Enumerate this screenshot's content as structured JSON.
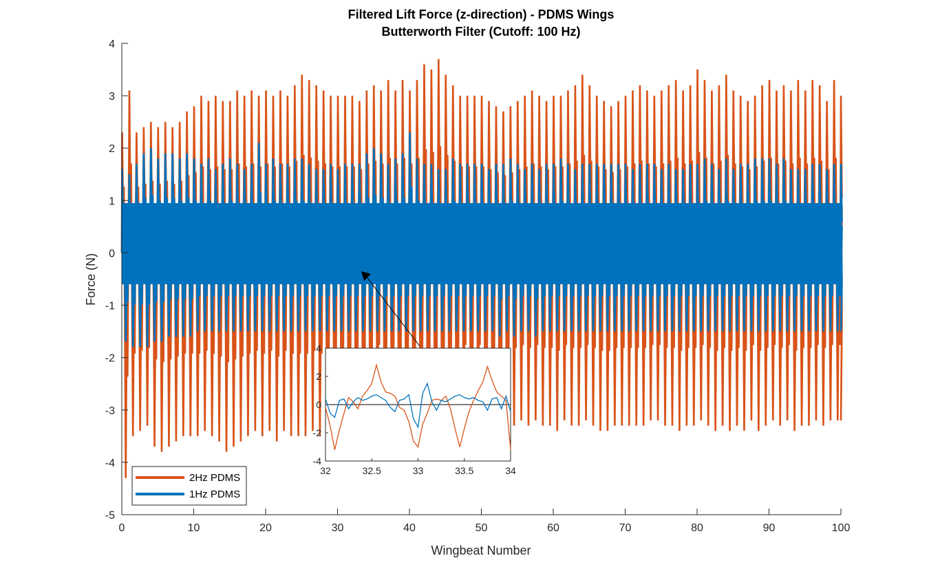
{
  "chart_data": {
    "type": "line",
    "title": "Filtered Lift Force (z-direction) - PDMS Wings",
    "subtitle": "Butterworth Filter (Cutoff: 100 Hz)",
    "xlabel": "Wingbeat Number",
    "ylabel": "Force (N)",
    "xlim": [
      0,
      100
    ],
    "ylim": [
      -5,
      4
    ],
    "xticks": [
      0,
      10,
      20,
      30,
      40,
      50,
      60,
      70,
      80,
      90,
      100
    ],
    "yticks": [
      -5,
      -4,
      -3,
      -2,
      -1,
      0,
      1,
      2,
      3,
      4
    ],
    "grid": false,
    "legend_location": "bottom-left",
    "colors": {
      "2Hz PDMS": "#D95319",
      "1Hz PDMS": "#0072BD"
    },
    "series": [
      {
        "name": "2Hz PDMS",
        "color": "#D95319",
        "description_points": "per-wingbeat peak and trough envelope (approx.)",
        "peak_x": [
          0,
          1,
          2,
          3,
          4,
          5,
          6,
          7,
          8,
          9,
          10,
          11,
          12,
          13,
          14,
          15,
          16,
          17,
          18,
          19,
          20,
          21,
          22,
          23,
          24,
          25,
          26,
          27,
          28,
          29,
          30,
          31,
          32,
          33,
          34,
          35,
          36,
          37,
          38,
          39,
          40,
          41,
          42,
          43,
          44,
          45,
          46,
          47,
          48,
          49,
          50,
          51,
          52,
          53,
          54,
          55,
          56,
          57,
          58,
          59,
          60,
          61,
          62,
          63,
          64,
          65,
          66,
          67,
          68,
          69,
          70,
          71,
          72,
          73,
          74,
          75,
          76,
          77,
          78,
          79,
          80,
          81,
          82,
          83,
          84,
          85,
          86,
          87,
          88,
          89,
          90,
          91,
          92,
          93,
          94,
          95,
          96,
          97,
          98,
          99,
          100
        ],
        "peak_y": [
          2.3,
          3.1,
          2.3,
          2.4,
          2.5,
          2.4,
          2.5,
          2.4,
          2.5,
          2.7,
          2.8,
          3.0,
          2.9,
          3.0,
          2.9,
          2.9,
          3.1,
          3.0,
          3.1,
          3.0,
          3.1,
          3.0,
          3.1,
          3.0,
          3.2,
          3.4,
          3.3,
          3.2,
          3.1,
          3.0,
          3.0,
          3.0,
          3.0,
          2.9,
          3.1,
          3.2,
          3.1,
          3.3,
          3.1,
          3.3,
          3.1,
          3.3,
          3.6,
          3.5,
          3.7,
          3.4,
          3.2,
          3.0,
          3.0,
          3.0,
          3.0,
          2.9,
          2.8,
          2.7,
          2.8,
          2.9,
          3.0,
          3.1,
          3.0,
          2.9,
          3.0,
          3.0,
          3.1,
          3.2,
          3.4,
          3.2,
          3.0,
          2.9,
          2.8,
          2.9,
          3.0,
          3.1,
          3.2,
          3.1,
          3.0,
          3.1,
          3.2,
          3.3,
          3.1,
          3.2,
          3.5,
          3.3,
          3.1,
          3.2,
          3.4,
          3.1,
          3.0,
          2.9,
          3.0,
          3.2,
          3.3,
          3.1,
          3.2,
          3.1,
          3.3,
          3.1,
          3.3,
          3.2,
          2.9,
          3.3,
          3.0
        ],
        "trough_y": [
          -4.3,
          -3.5,
          -3.4,
          -3.3,
          -3.7,
          -3.8,
          -3.7,
          -3.6,
          -3.5,
          -3.5,
          -3.5,
          -3.4,
          -3.5,
          -3.6,
          -3.8,
          -3.7,
          -3.6,
          -3.5,
          -3.4,
          -3.5,
          -3.4,
          -3.6,
          -3.4,
          -3.5,
          -3.5,
          -3.5,
          -3.4,
          -3.5,
          -3.4,
          -3.4,
          -3.3,
          -3.4,
          -3.3,
          -3.3,
          -3.3,
          -3.2,
          -3.3,
          -3.4,
          -3.5,
          -3.5,
          -3.3,
          -3.4,
          -3.4,
          -3.3,
          -3.4,
          -3.3,
          -3.4,
          -3.2,
          -3.3,
          -3.2,
          -3.3,
          -3.3,
          -3.5,
          -3.3,
          -3.3,
          -3.2,
          -3.3,
          -3.2,
          -3.3,
          -3.3,
          -3.4,
          -3.2,
          -3.3,
          -3.3,
          -3.2,
          -3.3,
          -3.4,
          -3.4,
          -3.3,
          -3.3,
          -3.3,
          -3.3,
          -3.3,
          -3.2,
          -3.2,
          -3.3,
          -3.3,
          -3.4,
          -3.3,
          -3.3,
          -3.2,
          -3.3,
          -3.4,
          -3.3,
          -3.4,
          -3.3,
          -3.4,
          -3.2,
          -3.4,
          -3.3,
          -3.2,
          -3.3,
          -3.2,
          -3.4,
          -3.3,
          -3.3,
          -3.2,
          -3.3,
          -3.2,
          -3.2,
          -3.2
        ]
      },
      {
        "name": "1Hz PDMS",
        "color": "#0072BD",
        "description_points": "per-wingbeat peak and trough envelope (approx.)",
        "peak_x": [
          0,
          1,
          2,
          3,
          4,
          5,
          6,
          7,
          8,
          9,
          10,
          11,
          12,
          13,
          14,
          15,
          16,
          17,
          18,
          19,
          20,
          21,
          22,
          23,
          24,
          25,
          26,
          27,
          28,
          29,
          30,
          31,
          32,
          33,
          34,
          35,
          36,
          37,
          38,
          39,
          40,
          41,
          42,
          43,
          44,
          45,
          46,
          47,
          48,
          49,
          50,
          51,
          52,
          53,
          54,
          55,
          56,
          57,
          58,
          59,
          60,
          61,
          62,
          63,
          64,
          65,
          66,
          67,
          68,
          69,
          70,
          71,
          72,
          73,
          74,
          75,
          76,
          77,
          78,
          79,
          80,
          81,
          82,
          83,
          84,
          85,
          86,
          87,
          88,
          89,
          90,
          91,
          92,
          93,
          94,
          95,
          96,
          97,
          98,
          99,
          100
        ],
        "peak_y": [
          1.6,
          1.5,
          1.7,
          1.9,
          2.0,
          1.8,
          1.9,
          1.9,
          1.8,
          1.9,
          1.8,
          1.7,
          1.8,
          1.6,
          1.7,
          1.8,
          1.7,
          1.6,
          1.7,
          2.1,
          1.7,
          1.8,
          1.7,
          1.7,
          1.8,
          1.8,
          1.7,
          1.6,
          1.6,
          1.7,
          1.6,
          1.7,
          1.7,
          1.7,
          1.9,
          2.0,
          1.9,
          1.7,
          1.8,
          1.9,
          2.3,
          1.8,
          1.7,
          1.7,
          1.6,
          1.6,
          1.8,
          1.7,
          1.7,
          1.7,
          1.7,
          1.6,
          1.7,
          1.7,
          1.8,
          1.7,
          1.6,
          1.7,
          1.6,
          1.7,
          1.7,
          1.8,
          1.7,
          1.6,
          1.7,
          1.7,
          1.7,
          1.7,
          1.7,
          1.7,
          1.7,
          1.6,
          1.7,
          1.7,
          1.7,
          1.6,
          1.7,
          1.6,
          1.6,
          1.7,
          1.7,
          1.8,
          1.7,
          1.6,
          1.8,
          1.6,
          1.7,
          1.7,
          1.8,
          1.8,
          1.8,
          1.7,
          1.8,
          1.6,
          1.6,
          1.6,
          1.7,
          1.7,
          1.6,
          1.7,
          1.7
        ],
        "trough_y": [
          -1.7,
          -1.8,
          -1.8,
          -1.8,
          -1.7,
          -1.7,
          -1.6,
          -1.6,
          -1.6,
          -1.6,
          -1.5,
          -1.5,
          -1.5,
          -1.5,
          -1.5,
          -1.5,
          -1.5,
          -1.5,
          -1.5,
          -1.5,
          -1.5,
          -1.5,
          -1.5,
          -1.5,
          -1.5,
          -1.5,
          -1.5,
          -1.5,
          -1.5,
          -1.5,
          -1.5,
          -1.5,
          -1.5,
          -1.5,
          -1.5,
          -1.5,
          -1.5,
          -1.5,
          -1.5,
          -1.5,
          -1.5,
          -1.5,
          -1.5,
          -1.5,
          -1.5,
          -1.5,
          -1.5,
          -1.5,
          -1.5,
          -1.5,
          -1.5,
          -1.5,
          -1.6,
          -1.5,
          -1.6,
          -1.5,
          -1.5,
          -1.6,
          -1.5,
          -1.5,
          -1.5,
          -1.5,
          -1.5,
          -1.5,
          -1.5,
          -1.5,
          -1.5,
          -1.5,
          -1.5,
          -1.5,
          -1.5,
          -1.5,
          -1.5,
          -1.5,
          -1.5,
          -1.5,
          -1.5,
          -1.5,
          -1.5,
          -1.5,
          -1.5,
          -1.5,
          -1.5,
          -1.5,
          -1.5,
          -1.5,
          -1.5,
          -1.5,
          -1.5,
          -1.5,
          -1.5,
          -1.5,
          -1.5,
          -1.5,
          -1.5,
          -1.5,
          -1.5,
          -1.5,
          -1.5,
          -1.5,
          -1.5
        ]
      }
    ],
    "inset": {
      "type": "line",
      "xlim": [
        32,
        34
      ],
      "ylim": [
        -4,
        4
      ],
      "xticks": [
        32,
        32.5,
        33,
        33.5,
        34
      ],
      "yticks": [
        -4,
        -2,
        0,
        2,
        4
      ],
      "zero_line": true,
      "arrow_to": {
        "x": 33.3,
        "y": -0.35
      },
      "series": [
        {
          "name": "2Hz PDMS",
          "color": "#D95319",
          "x": [
            32.0,
            32.05,
            32.1,
            32.15,
            32.2,
            32.25,
            32.3,
            32.35,
            32.4,
            32.45,
            32.5,
            32.55,
            32.6,
            32.65,
            32.7,
            32.75,
            32.8,
            32.85,
            32.9,
            32.95,
            33.0,
            33.05,
            33.1,
            33.15,
            33.2,
            33.25,
            33.3,
            33.35,
            33.4,
            33.45,
            33.5,
            33.55,
            33.6,
            33.65,
            33.7,
            33.75,
            33.8,
            33.85,
            33.9,
            33.95,
            34.0
          ],
          "y": [
            -0.2,
            -1.5,
            -3.2,
            -1.8,
            -0.6,
            0.5,
            0.2,
            -0.3,
            0.6,
            1.0,
            1.5,
            2.8,
            1.6,
            0.9,
            0.8,
            0.6,
            -0.2,
            -0.4,
            -1.2,
            -2.6,
            -3.0,
            -1.4,
            -0.6,
            0.3,
            0.4,
            0.3,
            0.6,
            -0.3,
            -1.7,
            -3.0,
            -1.7,
            -0.5,
            0.3,
            1.0,
            1.6,
            2.7,
            1.7,
            0.9,
            0.6,
            0.3,
            -3.2
          ]
        },
        {
          "name": "1Hz PDMS",
          "color": "#0072BD",
          "x": [
            32.0,
            32.05,
            32.1,
            32.15,
            32.2,
            32.25,
            32.3,
            32.35,
            32.4,
            32.45,
            32.5,
            32.55,
            32.6,
            32.65,
            32.7,
            32.75,
            32.8,
            32.85,
            32.9,
            32.95,
            33.0,
            33.05,
            33.1,
            33.15,
            33.2,
            33.25,
            33.3,
            33.35,
            33.4,
            33.45,
            33.5,
            33.55,
            33.6,
            33.65,
            33.7,
            33.75,
            33.8,
            33.85,
            33.9,
            33.95,
            34.0
          ],
          "y": [
            0.4,
            -0.6,
            -0.9,
            0.3,
            0.4,
            -0.3,
            0.2,
            0.5,
            0.3,
            0.4,
            0.6,
            0.7,
            0.5,
            0.3,
            -0.2,
            -0.5,
            0.3,
            0.4,
            0.7,
            -1.0,
            -1.6,
            0.8,
            1.5,
            0.2,
            -0.4,
            0.3,
            0.2,
            0.4,
            0.6,
            0.7,
            0.5,
            0.4,
            0.5,
            0.3,
            0.2,
            -0.4,
            0.4,
            0.5,
            -0.3,
            0.6,
            -0.5
          ]
        }
      ]
    }
  }
}
